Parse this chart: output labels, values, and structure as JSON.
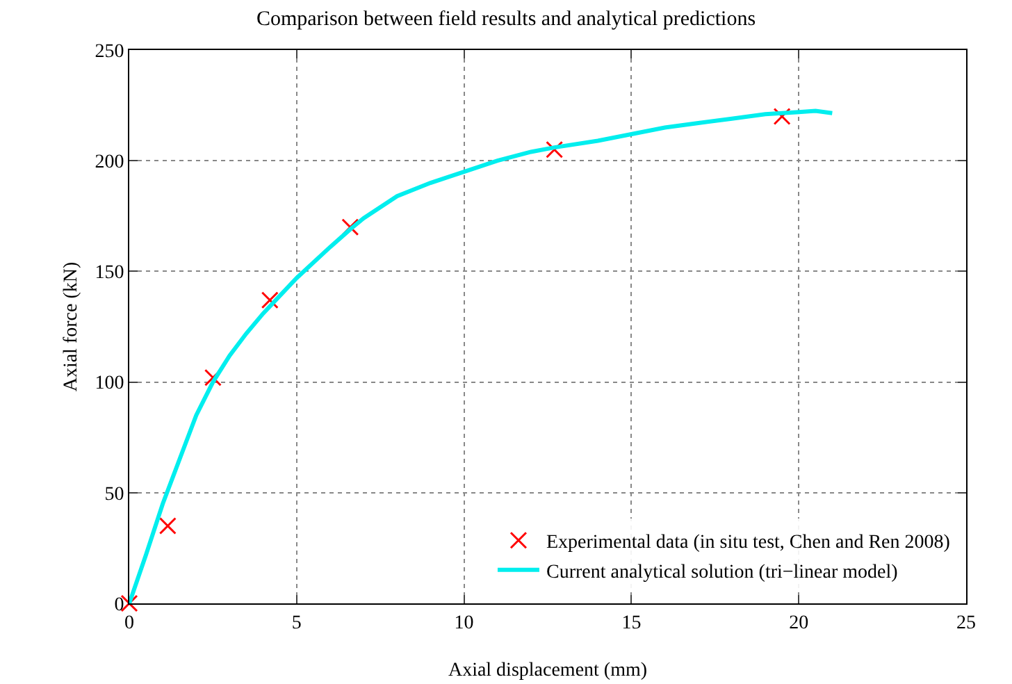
{
  "chart_data": {
    "type": "scatter",
    "title": "Comparison between field results and analytical predictions",
    "xlabel": "Axial displacement (mm)",
    "ylabel": "Axial force (kN)",
    "xlim": [
      0,
      25
    ],
    "xticks": [
      0,
      5,
      10,
      15,
      20,
      25
    ],
    "ylim": [
      0,
      250
    ],
    "yticks": [
      0,
      50,
      100,
      150,
      200,
      250
    ],
    "grid": true,
    "legend": "bottom right",
    "series": [
      {
        "name": "Experimental data (in situ test, Chen and Ren 2008)",
        "marker": "cross",
        "color": "#ff0000",
        "x": [
          0,
          1.15,
          2.5,
          4.2,
          6.6,
          12.7,
          19.5
        ],
        "values": [
          0,
          35,
          102,
          137,
          170,
          205,
          220
        ]
      },
      {
        "name": "Current analytical solution (tri−linear model)",
        "type": "line",
        "marker": "none",
        "line_style": "solid",
        "color": "#00eeee",
        "x": [
          0,
          0.5,
          1,
          1.5,
          2,
          2.5,
          3,
          3.5,
          4,
          4.5,
          5,
          6,
          6.6,
          7,
          8,
          9,
          10,
          11,
          12,
          12.7,
          14,
          15,
          16,
          17,
          18,
          19,
          20,
          20.5,
          21
        ],
        "values": [
          0,
          22,
          45,
          65,
          85,
          100,
          112,
          122,
          131,
          139,
          147,
          161,
          169,
          174,
          184,
          190,
          195,
          200,
          204,
          206,
          209,
          212,
          215,
          217,
          219,
          221,
          222,
          222.5,
          221.5
        ]
      }
    ]
  }
}
